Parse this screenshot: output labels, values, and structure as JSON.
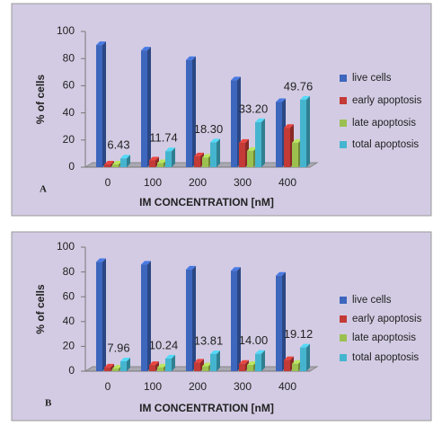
{
  "chart_data": [
    {
      "type": "bar",
      "panel": "A",
      "ylabel": "% of cells",
      "xlabel": "IM CONCENTRATION [nM]",
      "categories": [
        "0",
        "100",
        "200",
        "300",
        "400"
      ],
      "series": [
        {
          "name": "live cells",
          "color": "#3d66bd",
          "values": [
            90,
            86,
            79,
            64,
            48
          ]
        },
        {
          "name": "early apoptosis",
          "color": "#c33a36",
          "values": [
            2,
            5,
            8,
            18,
            29
          ]
        },
        {
          "name": "late apoptosis",
          "color": "#9bc04f",
          "values": [
            2,
            3,
            7,
            12,
            18
          ]
        },
        {
          "name": "total apoptosis",
          "color": "#45b5cf",
          "values": [
            6.43,
            11.74,
            18.3,
            33.2,
            49.76
          ],
          "value_labels": [
            "6.43",
            "11.74",
            "18.30",
            "33.20",
            "49.76"
          ]
        }
      ],
      "ylim": [
        0,
        100
      ],
      "yticks": [
        0,
        20,
        40,
        60,
        80,
        100
      ],
      "grid": false,
      "legend": "right"
    },
    {
      "type": "bar",
      "panel": "B",
      "ylabel": "% of cells",
      "xlabel": "IM CONCENTRATION [nM]",
      "categories": [
        "0",
        "100",
        "200",
        "300",
        "400"
      ],
      "series": [
        {
          "name": "live cells",
          "color": "#3d66bd",
          "values": [
            88,
            86,
            82,
            81,
            77
          ]
        },
        {
          "name": "early apoptosis",
          "color": "#c33a36",
          "values": [
            3,
            5,
            7,
            6,
            9
          ]
        },
        {
          "name": "late apoptosis",
          "color": "#9bc04f",
          "values": [
            2,
            3,
            4,
            5,
            6
          ]
        },
        {
          "name": "total apoptosis",
          "color": "#45b5cf",
          "values": [
            7.96,
            10.24,
            13.81,
            14.0,
            19.12
          ],
          "value_labels": [
            "7.96",
            "10.24",
            "13.81",
            "14.00",
            "19.12"
          ]
        }
      ],
      "ylim": [
        0,
        100
      ],
      "yticks": [
        0,
        20,
        40,
        60,
        80,
        100
      ],
      "grid": false,
      "legend": "right"
    }
  ]
}
